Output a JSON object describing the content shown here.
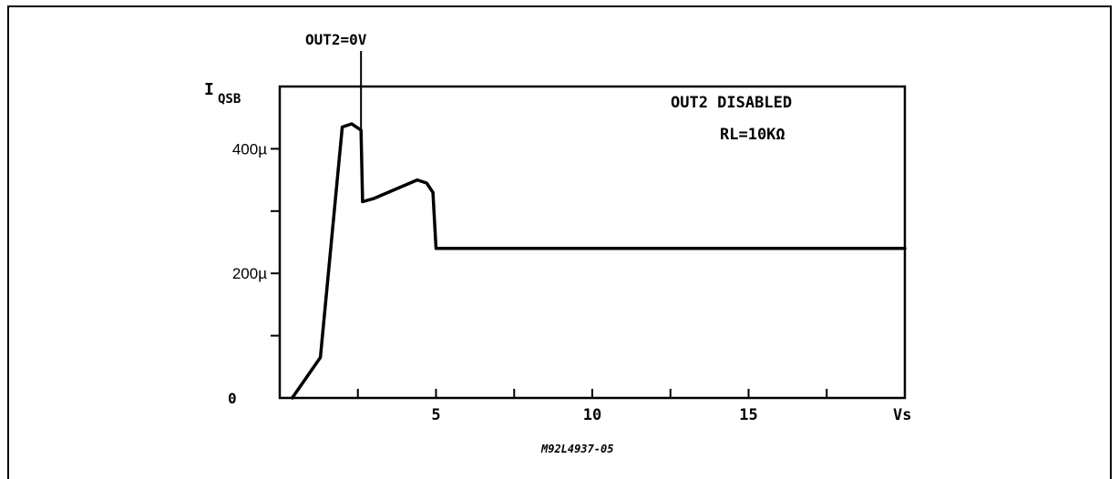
{
  "chart_data": {
    "type": "line",
    "y_label_main": "I",
    "y_label_sub": "QSB",
    "x_unit_label": "Vs",
    "x_ticks": [
      {
        "value": 5,
        "label": "5"
      },
      {
        "value": 10,
        "label": "10"
      },
      {
        "value": 15,
        "label": "15"
      }
    ],
    "x_minor_ticks": [
      2.5,
      7.5,
      12.5,
      17.5
    ],
    "y_ticks": [
      {
        "value": 0,
        "label": "0"
      },
      {
        "value": 200,
        "label": "200µ"
      },
      {
        "value": 400,
        "label": "400µ"
      }
    ],
    "y_minor_ticks": [
      100,
      300
    ],
    "xlim": [
      0,
      20
    ],
    "ylim": [
      0,
      500
    ],
    "series": [
      {
        "x": [
          0.4,
          1.3,
          2.0,
          2.3,
          2.6,
          2.65,
          3.0,
          4.4,
          4.7,
          4.9,
          5.0,
          20.0
        ],
        "y": [
          0,
          65,
          435,
          440,
          430,
          315,
          320,
          350,
          345,
          330,
          240,
          240
        ]
      }
    ],
    "annotations": {
      "marker_label": "OUT2=0V",
      "marker_x": 2.6,
      "legend_line1": "OUT2 DISABLED",
      "legend_line2": "RL=10KΩ",
      "figure_code": "M92L4937-05"
    }
  }
}
